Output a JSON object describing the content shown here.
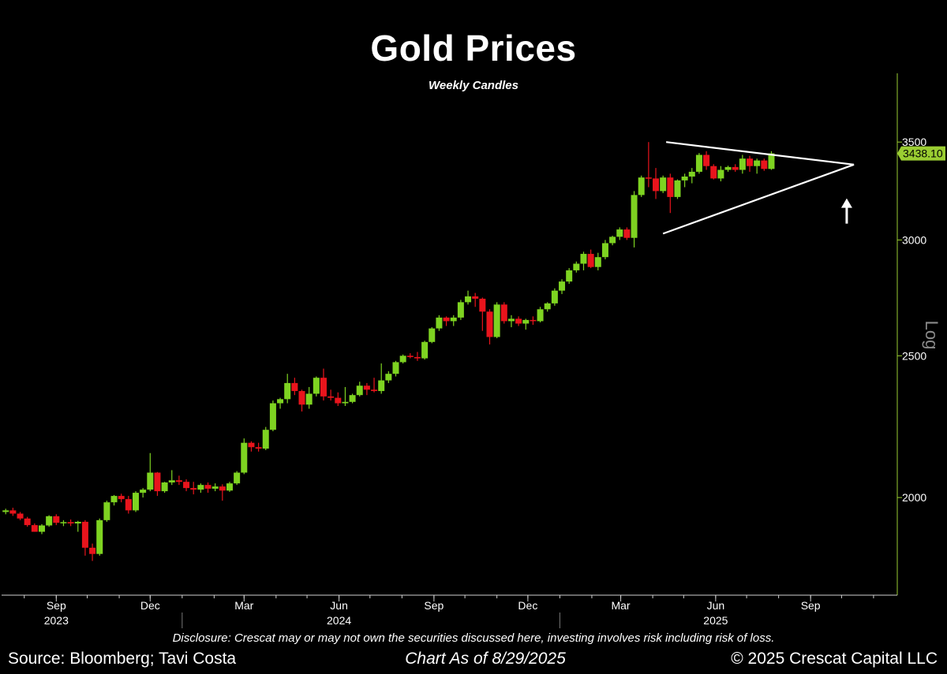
{
  "header": {
    "title": "Gold Prices",
    "subtitle": "Weekly Candles"
  },
  "footer": {
    "disclosure": "Disclosure: Crescat may or may not own the securities discussed here, investing involves risk including risk of loss.",
    "source": "Source: Bloomberg; Tavi Costa",
    "as_of": "Chart As of 8/29/2025",
    "copyright": "© 2025 Crescat Capital LLC"
  },
  "colors": {
    "background": "#000000",
    "up": "#7ed321",
    "down": "#e8141c",
    "axis": "#9acd32",
    "pattern": "#ffffff"
  },
  "chart_data": {
    "type": "candlestick",
    "title": "Gold Prices",
    "subtitle": "Weekly Candles",
    "yscale": "log",
    "ylabel": "Log",
    "ylim": [
      1715,
      3900
    ],
    "ytick_values": [
      2000,
      2500,
      3000,
      3500
    ],
    "ytick_labels": [
      "2000",
      "2500",
      "3000",
      "3500"
    ],
    "last_price": 3438.1,
    "last_price_label": "3438.10",
    "xlim": [
      "2023-07-10",
      "2025-11-24"
    ],
    "xtick_months": [
      "2023-09-01",
      "2023-12-01",
      "2024-03-01",
      "2024-06-01",
      "2024-09-01",
      "2024-12-01",
      "2025-03-01",
      "2025-06-01",
      "2025-09-01"
    ],
    "xtick_labels": [
      "Sep",
      "Dec",
      "Mar",
      "Jun",
      "Sep",
      "Dec",
      "Mar",
      "Jun",
      "Sep"
    ],
    "year_labels": [
      {
        "label": "2023",
        "at": "2023-09-01"
      },
      {
        "label": "2024",
        "at": "2024-06-01"
      },
      {
        "label": "2025",
        "at": "2025-06-01"
      }
    ],
    "candles_start": "2023-07-14",
    "candles_interval_days": 7,
    "candles": [
      [
        1955,
        1965,
        1948,
        1960
      ],
      [
        1960,
        1968,
        1943,
        1950
      ],
      [
        1950,
        1955,
        1930,
        1935
      ],
      [
        1935,
        1940,
        1910,
        1915
      ],
      [
        1915,
        1920,
        1895,
        1895
      ],
      [
        1895,
        1918,
        1888,
        1914
      ],
      [
        1914,
        1945,
        1910,
        1942
      ],
      [
        1942,
        1948,
        1915,
        1922
      ],
      [
        1922,
        1930,
        1912,
        1924
      ],
      [
        1924,
        1932,
        1912,
        1920
      ],
      [
        1920,
        1928,
        1895,
        1925
      ],
      [
        1925,
        1930,
        1825,
        1848
      ],
      [
        1848,
        1860,
        1810,
        1830
      ],
      [
        1830,
        1935,
        1825,
        1930
      ],
      [
        1930,
        1990,
        1925,
        1985
      ],
      [
        1985,
        2008,
        1975,
        2005
      ],
      [
        2005,
        2012,
        1985,
        1995
      ],
      [
        1995,
        2005,
        1950,
        1960
      ],
      [
        1960,
        2020,
        1955,
        2015
      ],
      [
        2015,
        2030,
        2000,
        2025
      ],
      [
        2025,
        2145,
        2020,
        2080
      ],
      [
        2080,
        2082,
        2005,
        2020
      ],
      [
        2020,
        2050,
        2015,
        2048
      ],
      [
        2048,
        2088,
        2040,
        2055
      ],
      [
        2055,
        2070,
        2040,
        2050
      ],
      [
        2050,
        2058,
        2020,
        2030
      ],
      [
        2030,
        2050,
        2010,
        2025
      ],
      [
        2025,
        2045,
        2015,
        2040
      ],
      [
        2040,
        2048,
        2015,
        2028
      ],
      [
        2028,
        2045,
        2020,
        2035
      ],
      [
        2035,
        2042,
        1990,
        2022
      ],
      [
        2022,
        2050,
        2018,
        2045
      ],
      [
        2045,
        2085,
        2040,
        2080
      ],
      [
        2080,
        2195,
        2075,
        2180
      ],
      [
        2180,
        2185,
        2150,
        2165
      ],
      [
        2165,
        2180,
        2150,
        2160
      ],
      [
        2160,
        2235,
        2155,
        2225
      ],
      [
        2225,
        2330,
        2220,
        2320
      ],
      [
        2320,
        2340,
        2300,
        2335
      ],
      [
        2335,
        2430,
        2320,
        2395
      ],
      [
        2395,
        2415,
        2350,
        2365
      ],
      [
        2365,
        2370,
        2290,
        2315
      ],
      [
        2315,
        2380,
        2300,
        2355
      ],
      [
        2355,
        2420,
        2345,
        2415
      ],
      [
        2415,
        2450,
        2330,
        2345
      ],
      [
        2345,
        2370,
        2330,
        2340
      ],
      [
        2340,
        2360,
        2310,
        2320
      ],
      [
        2320,
        2380,
        2310,
        2325
      ],
      [
        2325,
        2355,
        2320,
        2350
      ],
      [
        2350,
        2400,
        2345,
        2385
      ],
      [
        2385,
        2395,
        2350,
        2370
      ],
      [
        2370,
        2415,
        2360,
        2365
      ],
      [
        2365,
        2470,
        2355,
        2405
      ],
      [
        2405,
        2440,
        2395,
        2430
      ],
      [
        2430,
        2480,
        2420,
        2475
      ],
      [
        2475,
        2505,
        2470,
        2500
      ],
      [
        2500,
        2510,
        2490,
        2495
      ],
      [
        2495,
        2515,
        2480,
        2490
      ],
      [
        2490,
        2560,
        2485,
        2555
      ],
      [
        2555,
        2615,
        2550,
        2610
      ],
      [
        2610,
        2665,
        2600,
        2655
      ],
      [
        2655,
        2660,
        2620,
        2640
      ],
      [
        2640,
        2665,
        2620,
        2655
      ],
      [
        2655,
        2730,
        2645,
        2720
      ],
      [
        2720,
        2770,
        2710,
        2745
      ],
      [
        2745,
        2760,
        2700,
        2735
      ],
      [
        2735,
        2740,
        2600,
        2680
      ],
      [
        2680,
        2690,
        2545,
        2575
      ],
      [
        2575,
        2720,
        2570,
        2710
      ],
      [
        2710,
        2720,
        2630,
        2640
      ],
      [
        2640,
        2665,
        2615,
        2650
      ],
      [
        2650,
        2660,
        2620,
        2630
      ],
      [
        2630,
        2650,
        2605,
        2645
      ],
      [
        2645,
        2660,
        2625,
        2640
      ],
      [
        2640,
        2700,
        2635,
        2690
      ],
      [
        2690,
        2720,
        2680,
        2715
      ],
      [
        2715,
        2780,
        2705,
        2770
      ],
      [
        2770,
        2820,
        2755,
        2810
      ],
      [
        2810,
        2870,
        2800,
        2860
      ],
      [
        2860,
        2900,
        2850,
        2890
      ],
      [
        2890,
        2945,
        2860,
        2935
      ],
      [
        2935,
        2955,
        2870,
        2875
      ],
      [
        2875,
        2940,
        2860,
        2920
      ],
      [
        2920,
        3000,
        2910,
        2985
      ],
      [
        2985,
        3020,
        2975,
        3015
      ],
      [
        3015,
        3060,
        3000,
        3050
      ],
      [
        3050,
        3060,
        3000,
        3010
      ],
      [
        3010,
        3240,
        2965,
        3220
      ],
      [
        3220,
        3320,
        3210,
        3310
      ],
      [
        3310,
        3500,
        3260,
        3305
      ],
      [
        3305,
        3360,
        3200,
        3240
      ],
      [
        3240,
        3320,
        3230,
        3310
      ],
      [
        3310,
        3330,
        3130,
        3210
      ],
      [
        3210,
        3300,
        3200,
        3295
      ],
      [
        3295,
        3330,
        3260,
        3315
      ],
      [
        3315,
        3360,
        3280,
        3340
      ],
      [
        3340,
        3440,
        3330,
        3430
      ],
      [
        3430,
        3450,
        3350,
        3370
      ],
      [
        3370,
        3380,
        3300,
        3305
      ],
      [
        3305,
        3370,
        3290,
        3350
      ],
      [
        3350,
        3372,
        3340,
        3365
      ],
      [
        3365,
        3380,
        3340,
        3350
      ],
      [
        3350,
        3430,
        3330,
        3410
      ],
      [
        3410,
        3425,
        3340,
        3370
      ],
      [
        3370,
        3410,
        3330,
        3400
      ],
      [
        3400,
        3410,
        3345,
        3355
      ],
      [
        3355,
        3450,
        3350,
        3438.1
      ]
    ],
    "pattern": {
      "name": "symmetrical triangle",
      "upper_line": [
        [
          "2025-04-14",
          3500
        ],
        [
          "2025-10-13",
          3378
        ]
      ],
      "lower_line": [
        [
          "2025-04-11",
          3030
        ],
        [
          "2025-10-13",
          3378
        ]
      ]
    },
    "annotations": [
      {
        "type": "arrow",
        "direction": "up",
        "at": "2025-10-06",
        "value": 3195
      }
    ]
  }
}
